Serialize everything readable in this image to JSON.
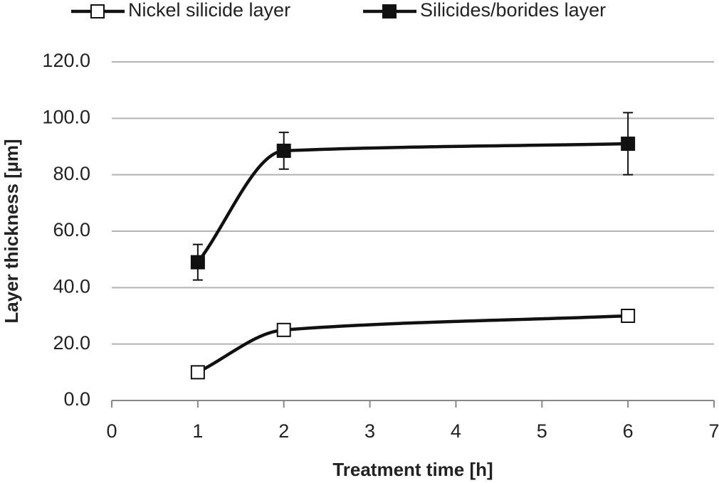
{
  "chart_data": {
    "type": "line",
    "smooth": true,
    "x_label": "Treatment time [h]",
    "y_label": "Layer thickness [µm]",
    "xlim": [
      0,
      7
    ],
    "xticks": [
      0,
      1,
      2,
      3,
      4,
      5,
      6,
      7
    ],
    "ylim": [
      0,
      120
    ],
    "yticks": [
      {
        "value": 0,
        "label": "0.0"
      },
      {
        "value": 20,
        "label": "20.0"
      },
      {
        "value": 40,
        "label": "40.0"
      },
      {
        "value": 60,
        "label": "60.0"
      },
      {
        "value": 80,
        "label": "80.0"
      },
      {
        "value": 100,
        "label": "100.0"
      },
      {
        "value": 120,
        "label": "120.0"
      }
    ],
    "grid": true,
    "legend": "top",
    "series": [
      {
        "name": "Nickel silicide layer",
        "color": "#111111",
        "marker_fill": "#ffffff",
        "x": [
          1,
          2,
          6
        ],
        "values": [
          10,
          25,
          30
        ]
      },
      {
        "name": "Silicides/borides layer",
        "color": "#111111",
        "marker_fill": "#111111",
        "x": [
          1,
          2,
          6
        ],
        "values": [
          49,
          88.5,
          91
        ],
        "errors": [
          6.3,
          6.5,
          11
        ]
      }
    ]
  }
}
